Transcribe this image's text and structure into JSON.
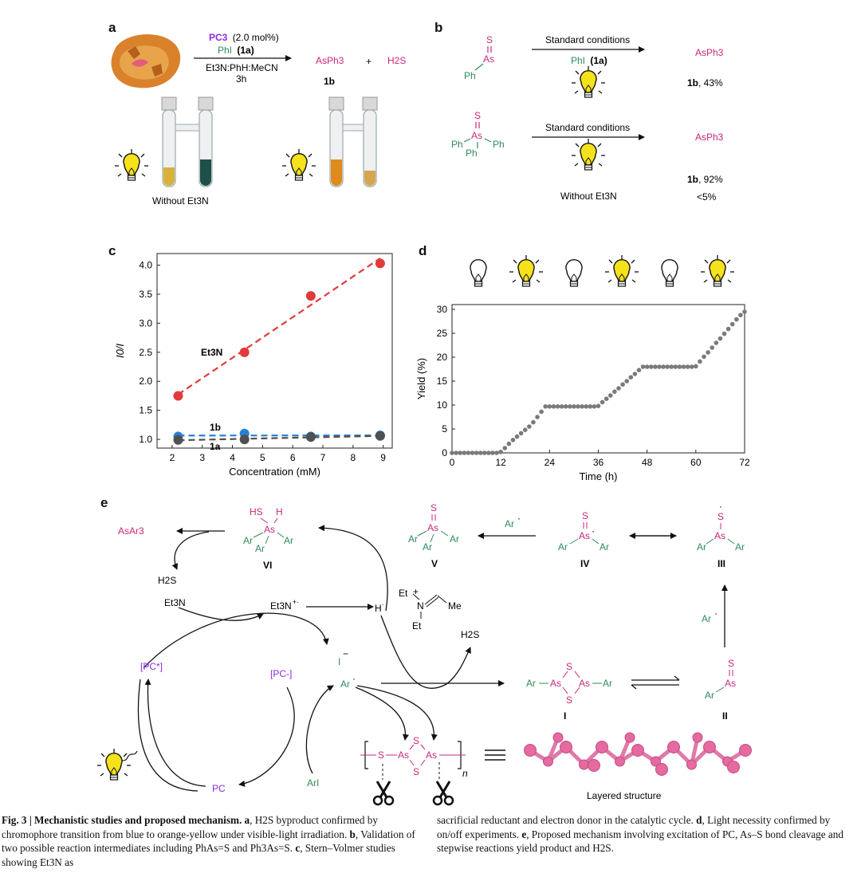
{
  "panels": {
    "a": "a",
    "b": "b",
    "c": "c",
    "d": "d",
    "e": "e"
  },
  "panel_a": {
    "catalyst": "PC3",
    "catalyst_loading": "(2.0 mol%)",
    "reagent": "PhI",
    "reagent_id": "(1a)",
    "solvent": "Et3N:PhH:MeCN",
    "time": "3h",
    "product": "AsPh3",
    "plus": "+",
    "byproduct": "H2S",
    "product_id": "1b",
    "without_label": "Without Et3N"
  },
  "panel_b": {
    "conditions": "Standard conditions",
    "reagent": "PhI",
    "reagent_id": "(1a)",
    "substrate1_S": "S",
    "substrate1_As": "As",
    "substrate1_Ph": "Ph",
    "product1": "AsPh3",
    "result1_id": "1b",
    "result1_yield": ", 43%",
    "substrate2_S": "S",
    "substrate2_As": "As",
    "substrate2_Ph": "Ph",
    "product2": "AsPh3",
    "result2_id": "1b",
    "result2_yield": ", 92%",
    "without_label": "Without Et3N",
    "without_yield": "<5%"
  },
  "chart_data": [
    {
      "type": "scatter",
      "panel": "c",
      "xlabel": "Concentration (mM)",
      "ylabel": "I0/I",
      "xlim": [
        1.5,
        9.3
      ],
      "ylim": [
        0.85,
        4.2
      ],
      "xticks": [
        2,
        3,
        4,
        5,
        6,
        7,
        8,
        9
      ],
      "yticks": [
        1.0,
        1.5,
        2.0,
        2.5,
        3.0,
        3.5,
        4.0
      ],
      "grid": false,
      "series": [
        {
          "name": "Et3N",
          "color": "#e23a3a",
          "x": [
            2.2,
            4.4,
            6.6,
            8.9
          ],
          "y": [
            1.75,
            2.5,
            3.47,
            4.03
          ]
        },
        {
          "name": "1b",
          "color": "#2a7fd4",
          "x": [
            2.2,
            4.4,
            6.6,
            8.9
          ],
          "y": [
            1.05,
            1.1,
            1.05,
            1.07
          ]
        },
        {
          "name": "1a",
          "color": "#505050",
          "x": [
            2.2,
            4.4,
            6.6,
            8.9
          ],
          "y": [
            0.99,
            1.0,
            1.04,
            1.06
          ]
        }
      ]
    },
    {
      "type": "scatter",
      "panel": "d",
      "xlabel": "Time (h)",
      "ylabel": "Yield (%)",
      "xlim": [
        0,
        72
      ],
      "ylim": [
        0,
        31
      ],
      "xticks": [
        0,
        12,
        24,
        36,
        48,
        60,
        72
      ],
      "yticks": [
        0,
        5,
        10,
        15,
        20,
        25,
        30
      ],
      "grid": false,
      "light_periods": [
        "off",
        "on",
        "off",
        "on",
        "off",
        "on"
      ],
      "series": [
        {
          "name": "",
          "color": "#7a7a7a",
          "x": [
            0,
            1,
            2,
            3,
            4,
            5,
            6,
            7,
            8,
            9,
            10,
            11,
            12,
            13,
            14,
            15,
            16,
            17,
            18,
            19,
            20,
            21,
            22,
            23,
            24,
            25,
            26,
            27,
            28,
            29,
            30,
            31,
            32,
            33,
            34,
            35,
            36,
            37,
            38,
            39,
            40,
            41,
            42,
            43,
            44,
            45,
            46,
            47,
            48,
            49,
            50,
            51,
            52,
            53,
            54,
            55,
            56,
            57,
            58,
            59,
            60,
            61,
            62,
            63,
            64,
            65,
            66,
            67,
            68,
            69,
            70,
            71,
            72
          ],
          "y": [
            0,
            0,
            0,
            0,
            0,
            0,
            0,
            0,
            0,
            0,
            0,
            0,
            0.2,
            1.0,
            1.9,
            2.7,
            3.4,
            4.1,
            4.8,
            5.5,
            6.4,
            7.5,
            8.6,
            9.7,
            9.7,
            9.7,
            9.7,
            9.7,
            9.7,
            9.7,
            9.7,
            9.7,
            9.7,
            9.7,
            9.7,
            9.7,
            9.8,
            10.6,
            11.3,
            12.0,
            12.8,
            13.5,
            14.3,
            15.0,
            15.8,
            16.5,
            17.3,
            18.0,
            18.0,
            18.0,
            18.0,
            18.0,
            18.0,
            18.0,
            18.0,
            18.0,
            18.0,
            18.0,
            18.0,
            18.0,
            18.1,
            19.1,
            20.1,
            21.0,
            22.0,
            23.0,
            23.9,
            24.9,
            25.9,
            26.9,
            27.9,
            28.8,
            29.5
          ]
        }
      ]
    }
  ],
  "panel_c_labels": {
    "et3n": "Et3N",
    "1b": "1b",
    "1a": "1a"
  },
  "panel_e": {
    "asar3": "AsAr3",
    "vi": "VI",
    "v": "V",
    "iv": "IV",
    "iii": "III",
    "ii": "II",
    "i": "I",
    "hs": "HS",
    "h": "H",
    "as": "As",
    "ar": "Ar",
    "s": "S",
    "h2s": "H2S",
    "et3n": "Et3N",
    "et3n_rad": "Et3N",
    "h_rad": "H",
    "iminium_et": "Et",
    "iminium_n": "N",
    "iminium_me": "Me",
    "pc_star": "[PC*]",
    "pc_minus": "[PC-]",
    "pc": "PC",
    "iodide": "I",
    "ar_rad": "Ar",
    "ari": "ArI",
    "n": "n",
    "layered": "Layered structure",
    "ar_dot_label": "Ar"
  },
  "caption": {
    "fig": "Fig. 3",
    "sep": "|",
    "title": "Mechanistic studies and proposed mechanism.",
    "a_label": "a",
    "a_text": ", H2S byproduct confirmed by chromophore transition from blue to orange-yellow under visible-light irradiation.",
    "b_label": "b",
    "b_text": ", Validation of two possible reaction intermediates including PhAs=S and Ph3As=S.",
    "c_label": "c",
    "c_text": ", Stern–Volmer studies showing Et3N as sacrificial reductant and electron donor in the catalytic cycle.",
    "d_label": "d",
    "d_text": ", Light necessity confirmed by on/off experiments.",
    "e_label": "e",
    "e_text": ", Proposed mechanism involving excitation of PC, As–S bond cleavage and stepwise reactions yield product and H2S."
  },
  "colors": {
    "green": "#2e8b57",
    "magenta": "#c8287a",
    "purple": "#8a2be2",
    "bulb_on": "#f6e21b"
  }
}
